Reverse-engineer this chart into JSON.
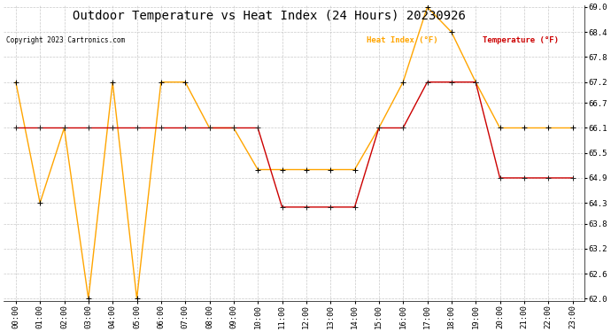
{
  "title": "Outdoor Temperature vs Heat Index (24 Hours) 20230926",
  "copyright": "Copyright 2023 Cartronics.com",
  "legend_heat": "Heat Index (°F)",
  "legend_temp": "Temperature (°F)",
  "hours": [
    "00:00",
    "01:00",
    "02:00",
    "03:00",
    "04:00",
    "05:00",
    "06:00",
    "07:00",
    "08:00",
    "09:00",
    "10:00",
    "11:00",
    "12:00",
    "13:00",
    "14:00",
    "15:00",
    "16:00",
    "17:00",
    "18:00",
    "19:00",
    "20:00",
    "21:00",
    "22:00",
    "23:00"
  ],
  "heat_index": [
    67.2,
    64.3,
    66.1,
    62.0,
    67.2,
    62.0,
    67.2,
    67.2,
    66.1,
    66.1,
    65.1,
    65.1,
    65.1,
    65.1,
    65.1,
    66.1,
    67.2,
    69.0,
    68.4,
    67.2,
    66.1,
    66.1,
    66.1,
    66.1
  ],
  "temperature": [
    66.1,
    66.1,
    66.1,
    66.1,
    66.1,
    66.1,
    66.1,
    66.1,
    66.1,
    66.1,
    66.1,
    64.2,
    64.2,
    64.2,
    64.2,
    66.1,
    66.1,
    67.2,
    67.2,
    67.2,
    64.9,
    64.9,
    64.9,
    64.9
  ],
  "heat_color": "#FFA500",
  "temp_color": "#CC0000",
  "temp_marker_color": "#333333",
  "ylim_min": 62.0,
  "ylim_max": 69.0,
  "yticks": [
    62.0,
    62.6,
    63.2,
    63.8,
    64.3,
    64.9,
    65.5,
    66.1,
    66.7,
    67.2,
    67.8,
    68.4,
    69.0
  ],
  "background_color": "#ffffff",
  "grid_color": "#bbbbbb",
  "title_fontsize": 10,
  "tick_fontsize": 6.5
}
